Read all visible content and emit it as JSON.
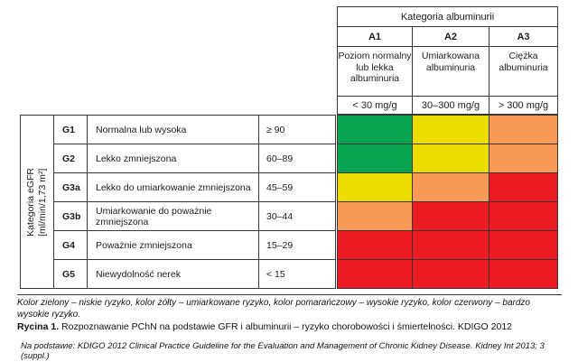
{
  "colors": {
    "green": "#0aa450",
    "yellow": "#ecdd00",
    "orange": "#f79a58",
    "red": "#ec1b23"
  },
  "albuminuria": {
    "title": "Kategoria albuminurii",
    "columns": [
      {
        "code": "A1",
        "desc": "Poziom normalny lub lekka albuminuria",
        "range": "< 30 mg/g"
      },
      {
        "code": "A2",
        "desc": "Umiarkowana albuminuria",
        "range": "30–300 mg/g"
      },
      {
        "code": "A3",
        "desc": "Ciężka albuminuria",
        "range": "> 300 mg/g"
      }
    ]
  },
  "gfr": {
    "axis_label_line1": "Kategoria eGFR",
    "axis_label_line2": "[ml/min/1,73 m²]",
    "rows": [
      {
        "code": "G1",
        "desc": "Normalna lub wysoka",
        "range": "≥ 90",
        "risk": [
          "green",
          "yellow",
          "orange"
        ]
      },
      {
        "code": "G2",
        "desc": "Lekko zmniejszona",
        "range": "60–89",
        "risk": [
          "green",
          "yellow",
          "orange"
        ]
      },
      {
        "code": "G3a",
        "desc": "Lekko do umiarkowanie zmniejszona",
        "range": "45–59",
        "risk": [
          "yellow",
          "orange",
          "red"
        ]
      },
      {
        "code": "G3b",
        "desc": "Umiarkowanie do poważnie zmniejszona",
        "range": "30–44",
        "risk": [
          "orange",
          "red",
          "red"
        ]
      },
      {
        "code": "G4",
        "desc": "Poważnie zmniejszona",
        "range": "15–29",
        "risk": [
          "red",
          "red",
          "red"
        ]
      },
      {
        "code": "G5",
        "desc": "Niewydolność nerek",
        "range": "< 15",
        "risk": [
          "red",
          "red",
          "red"
        ]
      }
    ]
  },
  "caption": {
    "legend": "Kolor zielony – niskie ryzyko, kolor żółty – umiarkowane ryzyko, kolor pomarańczowy – wysokie ryzyko, kolor czerwony – bardzo wysokie ryzyko.",
    "figure_label": "Rycina 1.",
    "figure_text": " Rozpoznawanie PChN na podstawie GFR i albuminurii – ryzyko chorobowości i śmiertelności. KDIGO 2012",
    "source": "Na podstawie: KDIGO 2012 Clinical Practice Guideline for the Evaluation and Management of Chronic Kidney Disease. Kidney Int 2013; 3 (suppl.)"
  }
}
